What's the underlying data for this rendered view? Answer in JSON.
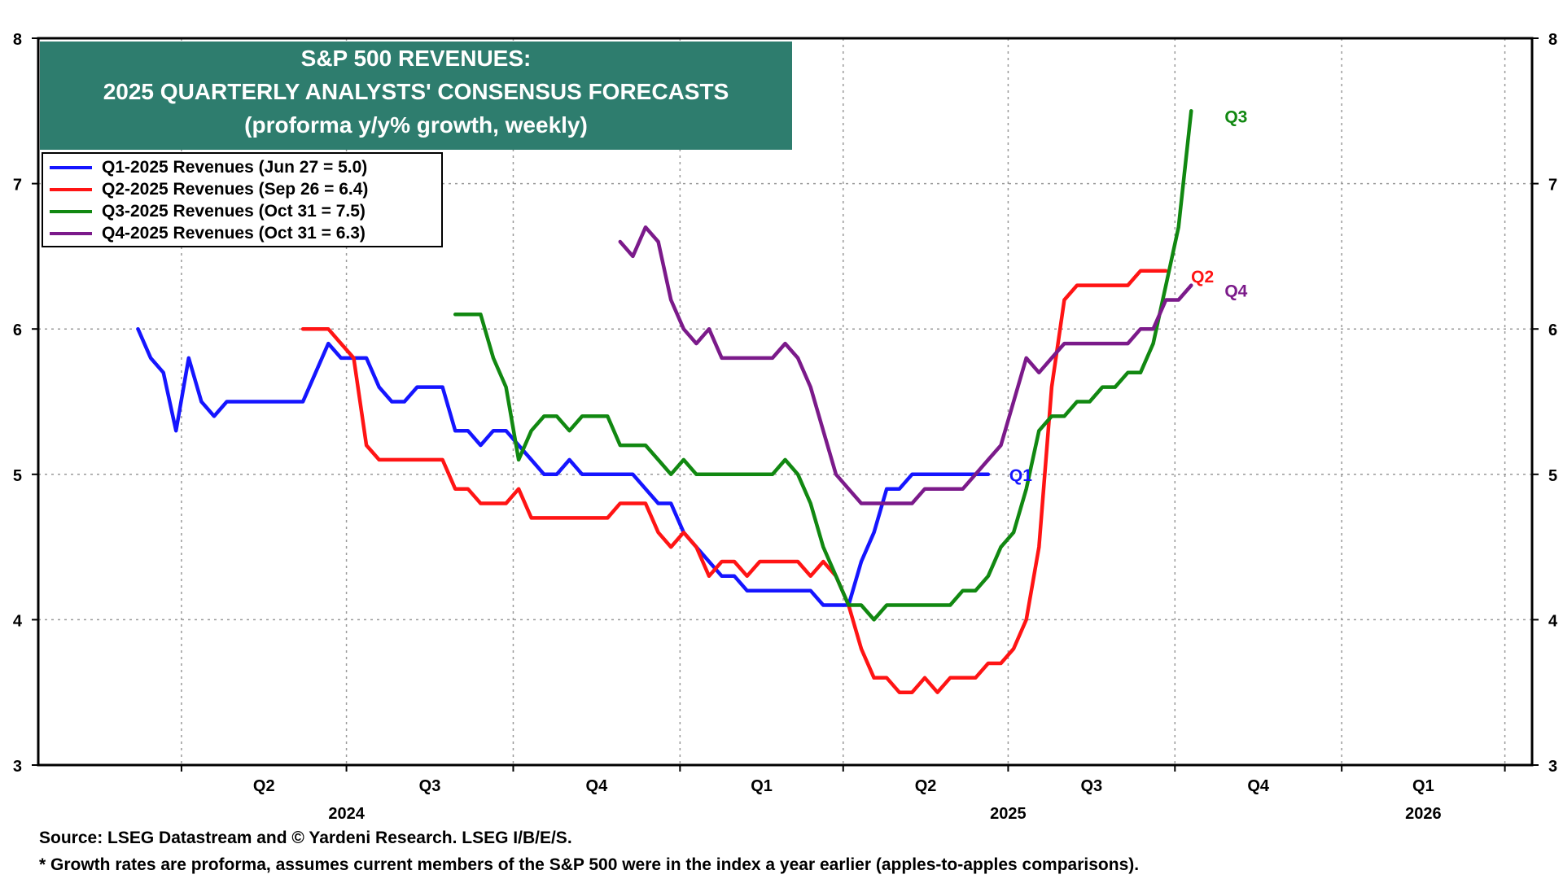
{
  "title_lines": [
    "S&P 500 REVENUES:",
    "2025 QUARTERLY ANALYSTS' CONSENSUS FORECASTS",
    "(proforma y/y% growth, weekly)"
  ],
  "legend": [
    {
      "label": "Q1-2025 Revenues (Jun 27 = 5.0)",
      "color": "#1515ff"
    },
    {
      "label": "Q2-2025 Revenues (Sep 26 = 6.4)",
      "color": "#ff1414"
    },
    {
      "label": "Q3-2025 Revenues (Oct 31 = 7.5)",
      "color": "#118811"
    },
    {
      "label": "Q4-2025 Revenues (Oct 31 = 6.3)",
      "color": "#7b1a8a"
    }
  ],
  "footer": {
    "source": "Source: LSEG Datastream and © Yardeni Research. LSEG I/B/E/S.",
    "note": "* Growth rates are proforma, assumes current members of the S&P 500 were in the index a year earlier (apples-to-apples comparisons)."
  },
  "chart_data": {
    "type": "line",
    "title": "S&P 500 REVENUES: 2025 QUARTERLY ANALYSTS' CONSENSUS FORECASTS (proforma y/y% growth, weekly)",
    "ylim": [
      3,
      8
    ],
    "y_ticks": [
      3,
      4,
      5,
      6,
      7,
      8
    ],
    "grid": true,
    "legend_position": "top-left",
    "x_tick_labels": [
      "Q2",
      "Q3",
      "Q4",
      "Q1",
      "Q2",
      "Q3",
      "Q4",
      "Q1"
    ],
    "x_year_labels": [
      "2024",
      "2025",
      "2026"
    ],
    "end_labels": [
      "Q1",
      "Q2",
      "Q3",
      "Q4"
    ],
    "series": [
      {
        "name": "Q1-2025 Revenues (Jun 27 = 5.0)",
        "end_label": "Q1",
        "color": "#1515ff",
        "start": "2024-03-08",
        "values": [
          6.0,
          5.8,
          5.7,
          5.3,
          5.8,
          5.5,
          5.4,
          5.5,
          5.5,
          5.5,
          5.5,
          5.5,
          5.5,
          5.5,
          5.7,
          5.9,
          5.8,
          5.8,
          5.8,
          5.6,
          5.5,
          5.5,
          5.6,
          5.6,
          5.6,
          5.3,
          5.3,
          5.2,
          5.3,
          5.3,
          5.2,
          5.1,
          5.0,
          5.0,
          5.1,
          5.0,
          5.0,
          5.0,
          5.0,
          5.0,
          4.9,
          4.8,
          4.8,
          4.6,
          4.5,
          4.4,
          4.3,
          4.3,
          4.2,
          4.2,
          4.2,
          4.2,
          4.2,
          4.2,
          4.1,
          4.1,
          4.1,
          4.4,
          4.6,
          4.9,
          4.9,
          5.0,
          5.0,
          5.0,
          5.0,
          5.0,
          5.0,
          5.0
        ]
      },
      {
        "name": "Q2-2025 Revenues (Sep 26 = 6.4)",
        "end_label": "Q2",
        "color": "#ff1414",
        "start": "2024-06-07",
        "values": [
          6.0,
          6.0,
          6.0,
          5.9,
          5.8,
          5.2,
          5.1,
          5.1,
          5.1,
          5.1,
          5.1,
          5.1,
          4.9,
          4.9,
          4.8,
          4.8,
          4.8,
          4.9,
          4.7,
          4.7,
          4.7,
          4.7,
          4.7,
          4.7,
          4.7,
          4.8,
          4.8,
          4.8,
          4.6,
          4.5,
          4.6,
          4.5,
          4.3,
          4.4,
          4.4,
          4.3,
          4.4,
          4.4,
          4.4,
          4.4,
          4.3,
          4.4,
          4.3,
          4.1,
          3.8,
          3.6,
          3.6,
          3.5,
          3.5,
          3.6,
          3.5,
          3.6,
          3.6,
          3.6,
          3.7,
          3.7,
          3.8,
          4.0,
          4.5,
          5.6,
          6.2,
          6.3,
          6.3,
          6.3,
          6.3,
          6.3,
          6.4,
          6.4,
          6.4
        ]
      },
      {
        "name": "Q3-2025 Revenues (Oct 31 = 7.5)",
        "end_label": "Q3",
        "color": "#118811",
        "start": "2024-08-30",
        "values": [
          6.1,
          6.1,
          6.1,
          5.8,
          5.6,
          5.1,
          5.3,
          5.4,
          5.4,
          5.3,
          5.4,
          5.4,
          5.4,
          5.2,
          5.2,
          5.2,
          5.1,
          5.0,
          5.1,
          5.0,
          5.0,
          5.0,
          5.0,
          5.0,
          5.0,
          5.0,
          5.1,
          5.0,
          4.8,
          4.5,
          4.3,
          4.1,
          4.1,
          4.0,
          4.1,
          4.1,
          4.1,
          4.1,
          4.1,
          4.1,
          4.2,
          4.2,
          4.3,
          4.5,
          4.6,
          4.9,
          5.3,
          5.4,
          5.4,
          5.5,
          5.5,
          5.6,
          5.6,
          5.7,
          5.7,
          5.9,
          6.3,
          6.7,
          7.5
        ]
      },
      {
        "name": "Q4-2025 Revenues (Oct 31 = 6.3)",
        "end_label": "Q4",
        "color": "#7b1a8a",
        "start": "2024-11-29",
        "values": [
          6.6,
          6.5,
          6.7,
          6.6,
          6.2,
          6.0,
          5.9,
          6.0,
          5.8,
          5.8,
          5.8,
          5.8,
          5.8,
          5.9,
          5.8,
          5.6,
          5.3,
          5.0,
          4.9,
          4.8,
          4.8,
          4.8,
          4.8,
          4.8,
          4.9,
          4.9,
          4.9,
          4.9,
          5.0,
          5.1,
          5.2,
          5.5,
          5.8,
          5.7,
          5.8,
          5.9,
          5.9,
          5.9,
          5.9,
          5.9,
          5.9,
          6.0,
          6.0,
          6.2,
          6.2,
          6.3
        ]
      }
    ]
  }
}
